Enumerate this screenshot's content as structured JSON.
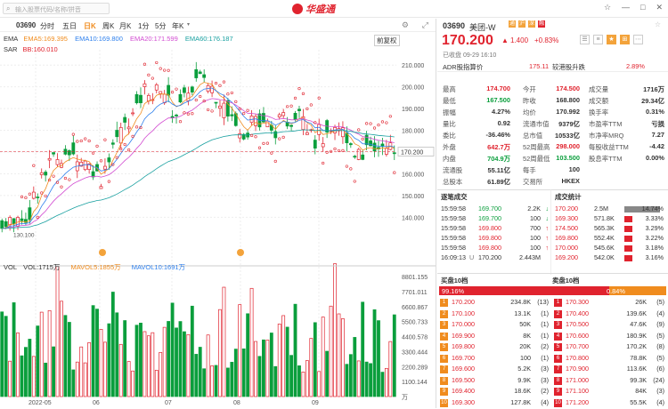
{
  "app": {
    "title": "华盛通",
    "search_placeholder": "输入股票代码/名称/拼音",
    "window_buttons": [
      "☆",
      "—",
      "□",
      "✕"
    ]
  },
  "toolbar": {
    "code": "03690",
    "periods": [
      "分时",
      "五日",
      "日K",
      "周K",
      "月K",
      "1分",
      "5分",
      "年K"
    ],
    "active_period": "日K"
  },
  "indicators": {
    "ema_label": "EMA",
    "ema5": "EMA5:169.395",
    "ema10": "EMA10:169.800",
    "ema20": "EMA20:171.599",
    "ema60": "EMA60:176.187",
    "sar_label": "SAR",
    "sar_value": "BB:160.010",
    "adjust": "前复权"
  },
  "price_axis": [
    "210.000",
    "200.000",
    "190.000",
    "180.000",
    "170.200",
    "160.000",
    "150.000",
    "140.000"
  ],
  "current_price_tag": "170.200",
  "low_marker": "130.100",
  "vol_header": {
    "label": "VOL",
    "vol": "VOL:1715万",
    "mavol5": "MAVOL5:1855万",
    "mavol10": "MAVOL10:1691万"
  },
  "vol_axis": [
    "8801.155",
    "7701.011",
    "6600.867",
    "5500.733",
    "4400.578",
    "3300.444",
    "2200.289",
    "1100.144",
    "万"
  ],
  "date_axis": [
    "2022-05",
    "06",
    "07",
    "08",
    "09"
  ],
  "quote": {
    "code": "03690",
    "name": "美团-W",
    "tags": [
      "通",
      "沪",
      "深",
      "融"
    ],
    "price": "170.200",
    "change": "1.400",
    "change_pct": "+0.83%",
    "status": "已收盘 09-29 16:10",
    "adr_label": "ADR股指算价",
    "adr_value": "175.11",
    "adr_premium_label": "较港股升跌",
    "adr_premium_value": "2.89%",
    "icons": [
      "☰",
      "≡",
      "★",
      "⊞",
      "⋯"
    ]
  },
  "stats": [
    [
      "最高",
      "174.700",
      "今开",
      "174.500",
      "成交量",
      "1716万"
    ],
    [
      "最低",
      "167.500",
      "昨收",
      "168.800",
      "成交额",
      "29.34亿"
    ],
    [
      "振幅",
      "4.27%",
      "均价",
      "170.992",
      "换手率",
      "0.31%"
    ],
    [
      "量比",
      "0.92",
      "流通市值",
      "9379亿",
      "市盈率TTM",
      "亏损"
    ],
    [
      "委比",
      "-36.46%",
      "总市值",
      "10533亿",
      "市净率MRQ",
      "7.27"
    ],
    [
      "外盘",
      "642.7万",
      "52周最高",
      "298.000",
      "每股收益TTM",
      "-4.42"
    ],
    [
      "内盘",
      "704.9万",
      "52周最低",
      "103.500",
      "股息率TTM",
      "0.00%"
    ],
    [
      "流通股",
      "55.11亿",
      "每手",
      "100",
      "",
      ""
    ],
    [
      "总股本",
      "61.89亿",
      "交易所",
      "HKEX",
      "",
      ""
    ]
  ],
  "ticks_header": "逐笔成交",
  "ticks": [
    [
      "15:59:58",
      "169.700",
      "2.2K",
      "down"
    ],
    [
      "15:59:58",
      "169.700",
      "100",
      "down"
    ],
    [
      "15:59:58",
      "169.800",
      "700",
      "up"
    ],
    [
      "15:59:58",
      "169.800",
      "100",
      "up"
    ],
    [
      "15:59:58",
      "169.800",
      "100",
      "up"
    ],
    [
      "16:09:13",
      "170.200",
      "2.443M",
      "neutral"
    ]
  ],
  "ticks_tag": "U",
  "dist_header": "成交统计",
  "dist": [
    [
      "170.200",
      "2.5M",
      "14.74%"
    ],
    [
      "169.300",
      "571.8K",
      "3.33%"
    ],
    [
      "174.500",
      "565.3K",
      "3.29%"
    ],
    [
      "169.800",
      "552.4K",
      "3.22%"
    ],
    [
      "170.000",
      "545.6K",
      "3.18%"
    ],
    [
      "169.200",
      "542.0K",
      "3.16%"
    ]
  ],
  "orderbook": {
    "bid_title": "买盘10档",
    "ask_title": "卖盘10档",
    "bid_pct": "99.16%",
    "ask_pct": "0.84%",
    "bids": [
      [
        "1",
        "170.200",
        "234.8K",
        "(13)"
      ],
      [
        "2",
        "170.100",
        "13.1K",
        "(1)"
      ],
      [
        "3",
        "170.000",
        "50K",
        "(1)"
      ],
      [
        "4",
        "169.900",
        "8K",
        "(1)"
      ],
      [
        "5",
        "169.800",
        "20K",
        "(2)"
      ],
      [
        "6",
        "169.700",
        "100",
        "(1)"
      ],
      [
        "7",
        "169.600",
        "5.2K",
        "(3)"
      ],
      [
        "8",
        "169.500",
        "9.9K",
        "(3)"
      ],
      [
        "9",
        "169.400",
        "18.6K",
        "(2)"
      ],
      [
        "10",
        "169.300",
        "127.8K",
        "(4)"
      ]
    ],
    "asks": [
      [
        "1",
        "170.300",
        "26K",
        "(5)"
      ],
      [
        "2",
        "170.400",
        "139.6K",
        "(4)"
      ],
      [
        "3",
        "170.500",
        "47.6K",
        "(9)"
      ],
      [
        "4",
        "170.600",
        "180.9K",
        "(5)"
      ],
      [
        "5",
        "170.700",
        "170.2K",
        "(8)"
      ],
      [
        "6",
        "170.800",
        "78.8K",
        "(5)"
      ],
      [
        "7",
        "170.900",
        "113.6K",
        "(6)"
      ],
      [
        "8",
        "171.000",
        "99.3K",
        "(24)"
      ],
      [
        "9",
        "171.100",
        "84K",
        "(3)"
      ],
      [
        "10",
        "171.200",
        "55.5K",
        "(4)"
      ]
    ]
  },
  "colors": {
    "up": "#e0232e",
    "down": "#0a9e3c",
    "accent": "#f08c1e",
    "ema5": "#f08c1e",
    "ema10": "#2f80ed",
    "ema20": "#d24bd1",
    "ema60": "#19a0a0"
  }
}
